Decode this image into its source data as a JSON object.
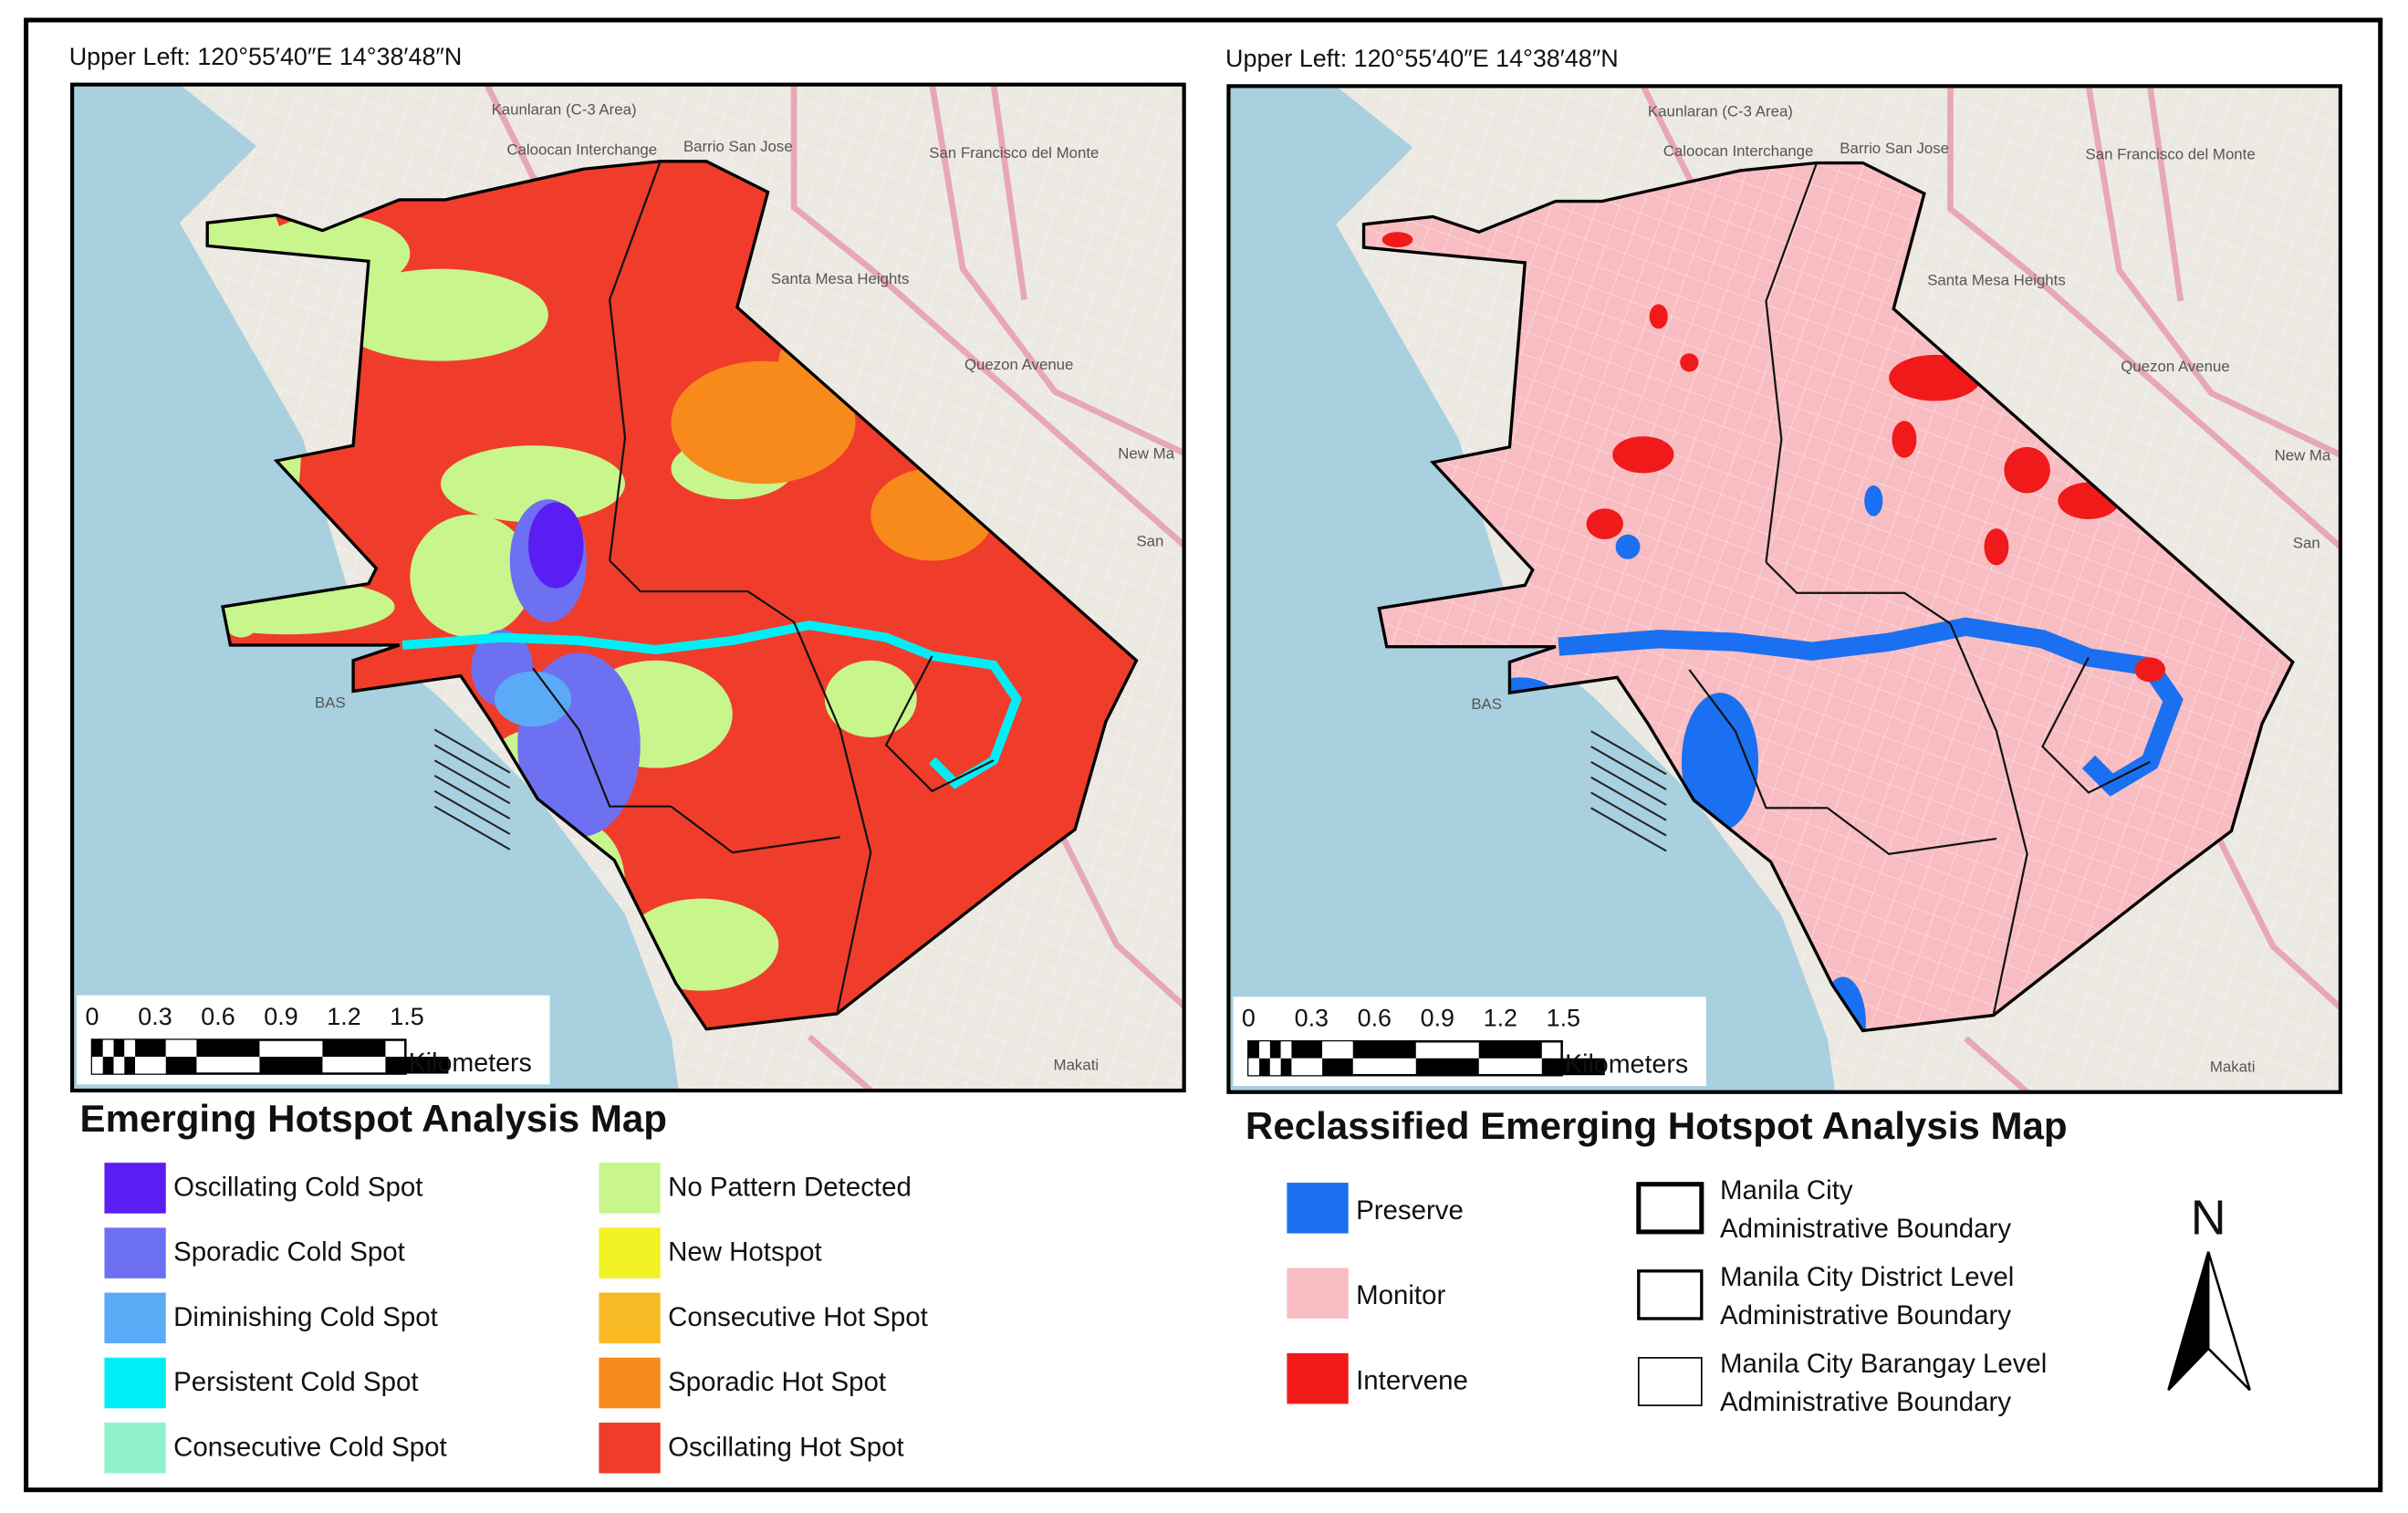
{
  "panels": [
    {
      "corner_label": "Upper Left: 120°55′40″E  14°38′48″N",
      "basemap_labels": [
        "Kaunlaran (C-3 Area)",
        "Caloocan Interchange",
        "Barrio San Jose",
        "San Francisco del Monte",
        "Santa Mesa Heights",
        "Quezon Avenue",
        "New Ma",
        "San",
        "Makati",
        "BAS"
      ],
      "scale": {
        "ticks": [
          0,
          0.3,
          0.6,
          0.9,
          1.2,
          1.5
        ],
        "unit": "Kilometers"
      },
      "title": "Emerging Hotspot Analysis Map",
      "legend": [
        {
          "label": "Oscillating Cold Spot",
          "color": "#5a1ef2"
        },
        {
          "label": "Sporadic Cold Spot",
          "color": "#6e70f2"
        },
        {
          "label": "Diminishing Cold Spot",
          "color": "#5aaaf6"
        },
        {
          "label": "Persistent Cold Spot",
          "color": "#00eef6"
        },
        {
          "label": "Consecutive Cold Spot",
          "color": "#92f2cc"
        },
        {
          "label": "No Pattern Detected",
          "color": "#c8f58c"
        },
        {
          "label": "New Hotspot",
          "color": "#f2f224"
        },
        {
          "label": "Consecutive Hot Spot",
          "color": "#f8ba24"
        },
        {
          "label": "Sporadic Hot Spot",
          "color": "#f88a1c"
        },
        {
          "label": "Oscillating Hot Spot",
          "color": "#f03c2a"
        }
      ]
    },
    {
      "corner_label": "Upper Left: 120°55′40″E  14°38′48″N",
      "basemap_labels": [
        "Kaunlaran (C-3 Area)",
        "Caloocan Interchange",
        "Barrio San Jose",
        "San Francisco del Monte",
        "Santa Mesa Heights",
        "Quezon Avenue",
        "New Ma",
        "San",
        "Makati",
        "BAS"
      ],
      "scale": {
        "ticks": [
          0,
          0.3,
          0.6,
          0.9,
          1.2,
          1.5
        ],
        "unit": "Kilometers"
      },
      "title": "Reclassified Emerging Hotspot Analysis Map",
      "legend": [
        {
          "label": "Preserve",
          "color": "#1a70f0"
        },
        {
          "label": "Monitor",
          "color": "#f8bdc2"
        },
        {
          "label": "Intervene",
          "color": "#f01a1a"
        }
      ],
      "boundaries": [
        {
          "lines": [
            "Manila City",
            "Administrative Boundary"
          ]
        },
        {
          "lines": [
            "Manila City District Level",
            "Administrative Boundary"
          ]
        },
        {
          "lines": [
            "Manila City Barangay Level",
            "Administrative Boundary"
          ]
        }
      ]
    }
  ],
  "north_arrow": "N"
}
